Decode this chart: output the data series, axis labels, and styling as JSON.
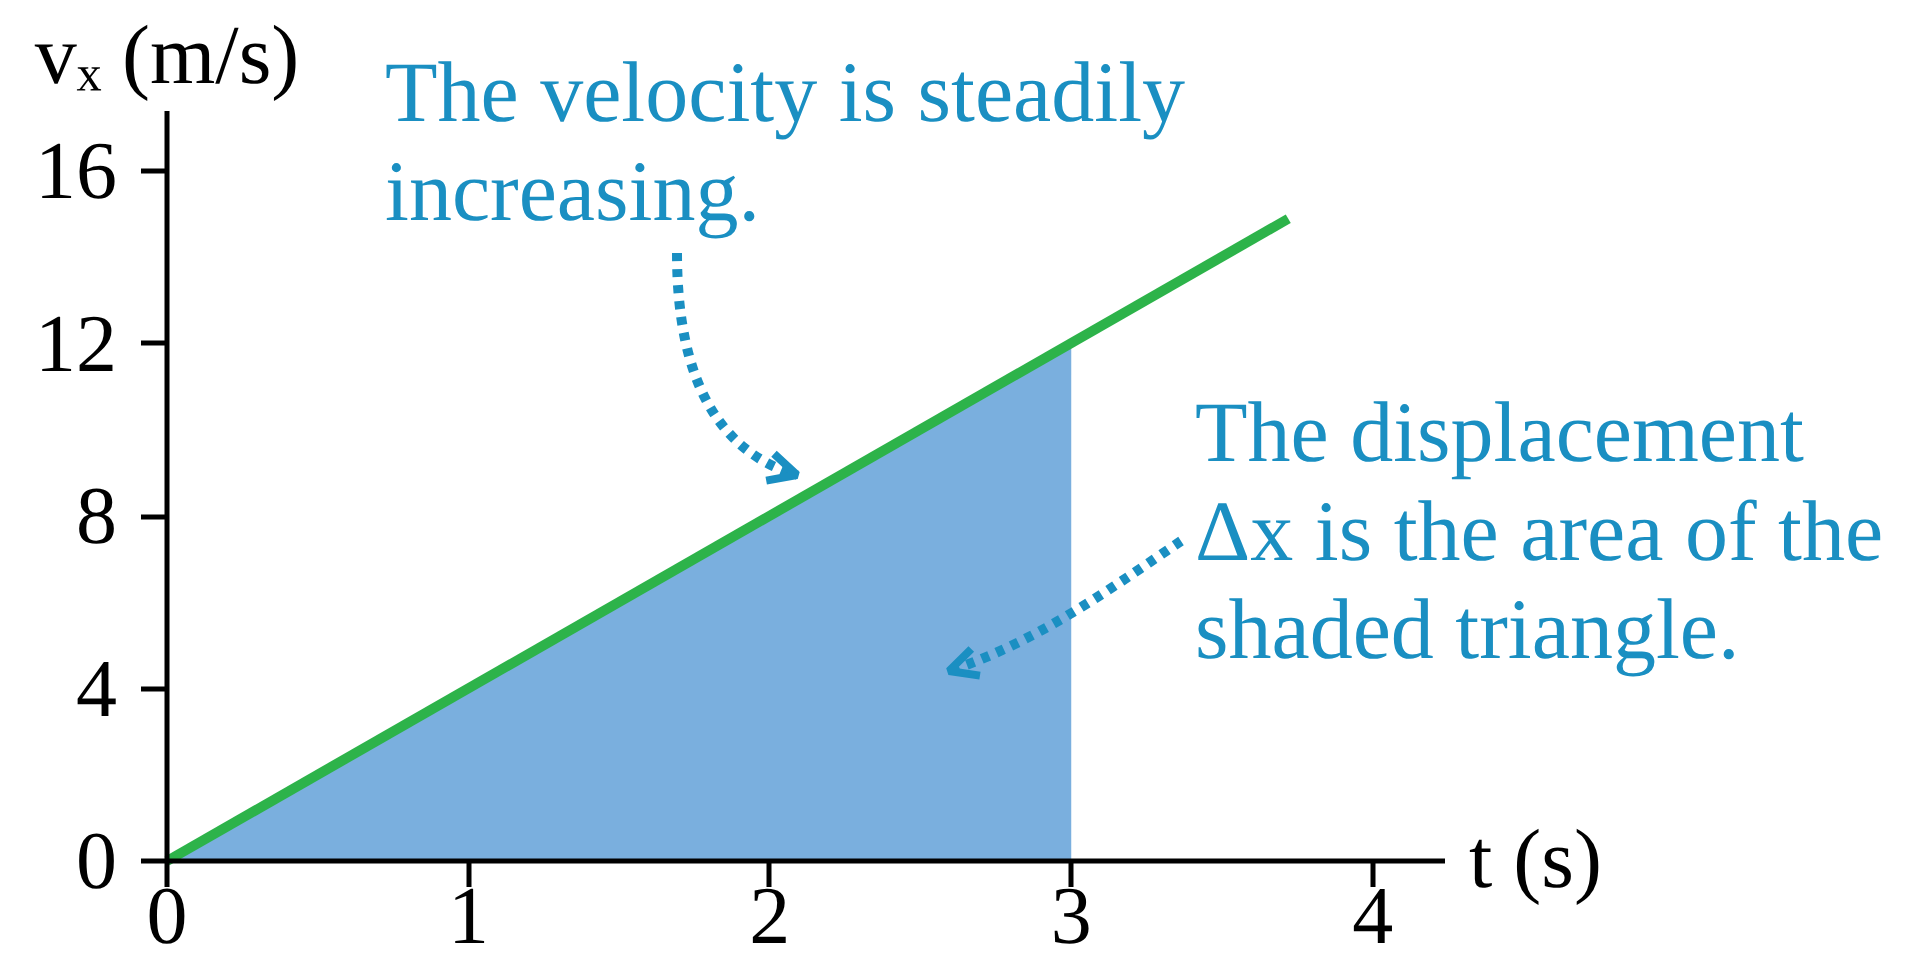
{
  "chart_data": {
    "type": "line",
    "xlabel": "t (s)",
    "ylabel": "vₓ (m/s)",
    "xlim": [
      0,
      4.24
    ],
    "ylim": [
      0,
      17.4
    ],
    "xticks": [
      0,
      1,
      2,
      3,
      4
    ],
    "yticks": [
      0,
      4,
      8,
      12,
      16
    ],
    "grid": false,
    "series": [
      {
        "type": "area",
        "color": "#7aafde",
        "x": [
          0,
          3
        ],
        "values": [
          0,
          12
        ]
      },
      {
        "color": "#2db34a",
        "x": [
          0,
          3.72
        ],
        "values": [
          0,
          14.9
        ]
      }
    ],
    "annotations": [
      "The velocity is steadily\nincreasing.",
      "The displacement\nΔx is the area of the\nshaded triangle."
    ]
  }
}
